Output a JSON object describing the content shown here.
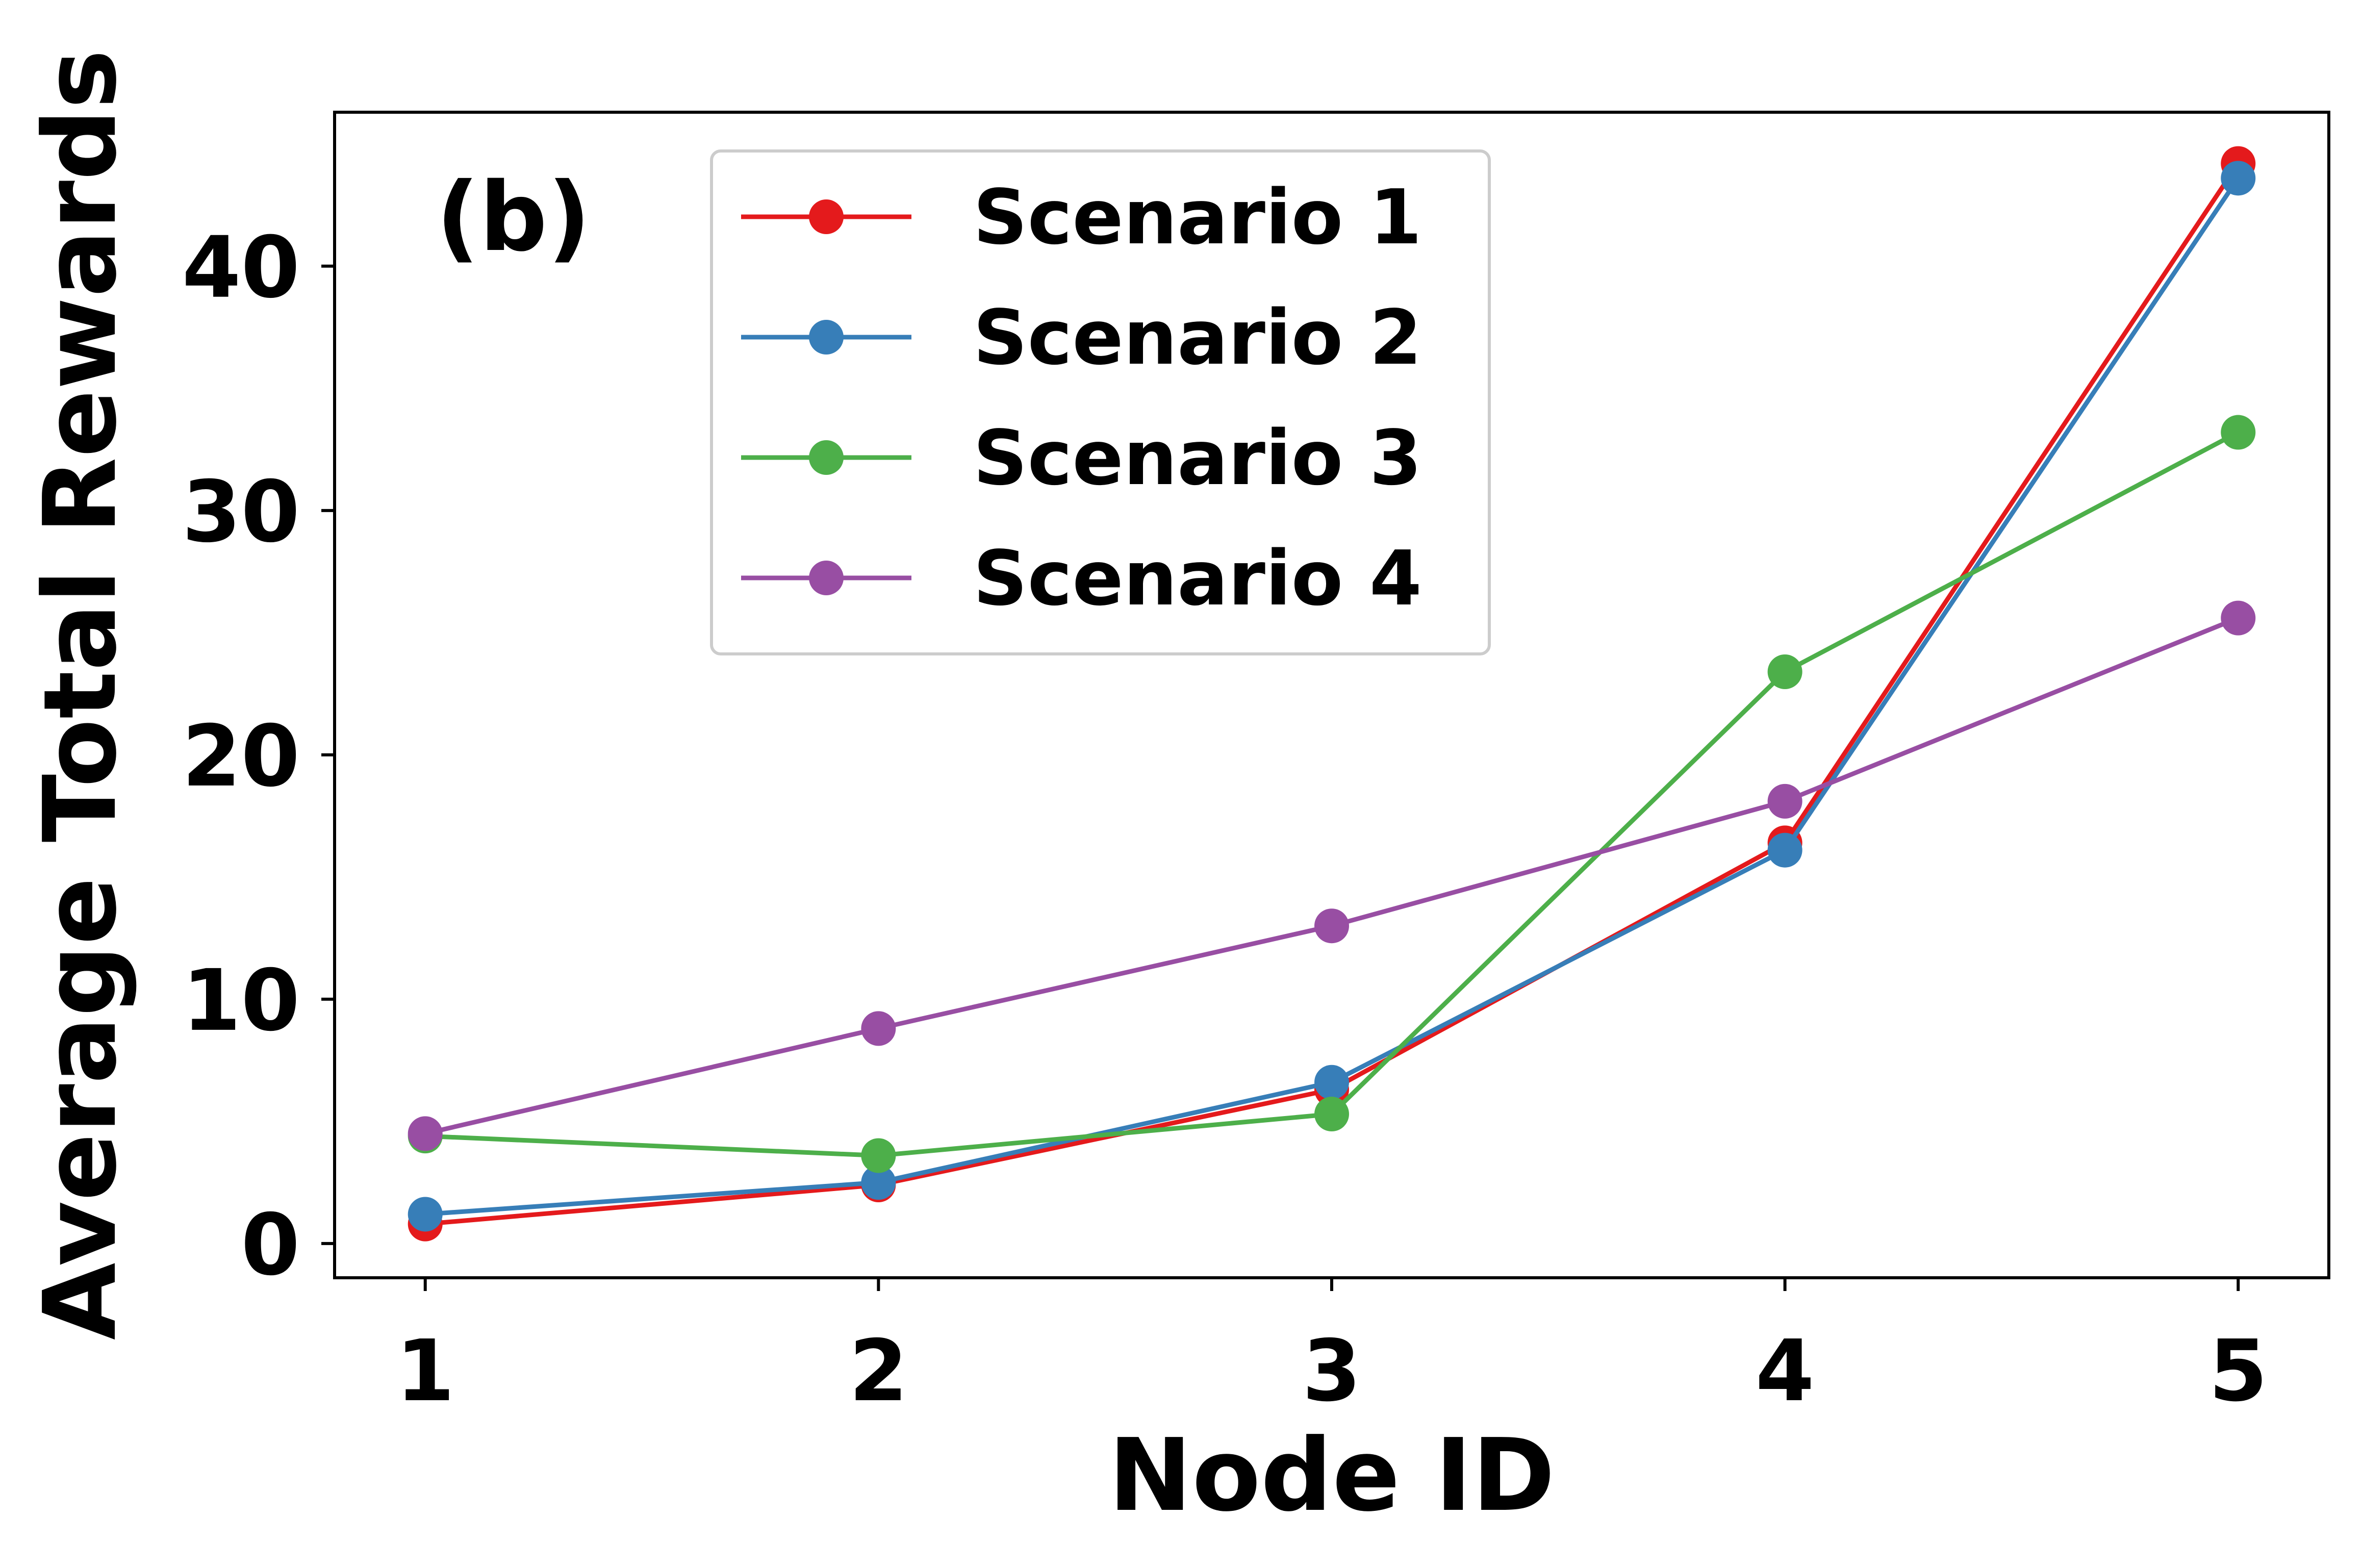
{
  "chart_data": {
    "type": "line",
    "panel_label": "(b)",
    "xlabel": "Node ID",
    "ylabel": "Average Total Rewards",
    "x": [
      1,
      2,
      3,
      4,
      5
    ],
    "x_tick_labels": [
      "1",
      "2",
      "3",
      "4",
      "5"
    ],
    "y_ticks": [
      0,
      10,
      20,
      30,
      40
    ],
    "y_tick_labels": [
      "0",
      "10",
      "20",
      "30",
      "40"
    ],
    "xlim": [
      0.8,
      5.2
    ],
    "ylim": [
      -1.4,
      46.3
    ],
    "grid": false,
    "legend_position": "top-center",
    "series": [
      {
        "name": "Scenario 1",
        "color": "#e41a1c",
        "values": [
          0.8,
          2.4,
          6.3,
          16.4,
          44.2
        ]
      },
      {
        "name": "Scenario 2",
        "color": "#377eb8",
        "values": [
          1.2,
          2.5,
          6.6,
          16.1,
          43.6
        ]
      },
      {
        "name": "Scenario 3",
        "color": "#4daf4a",
        "values": [
          4.4,
          3.6,
          5.3,
          23.4,
          33.2
        ]
      },
      {
        "name": "Scenario 4",
        "color": "#984ea3",
        "values": [
          4.5,
          8.8,
          13.0,
          18.1,
          25.6
        ]
      }
    ]
  }
}
